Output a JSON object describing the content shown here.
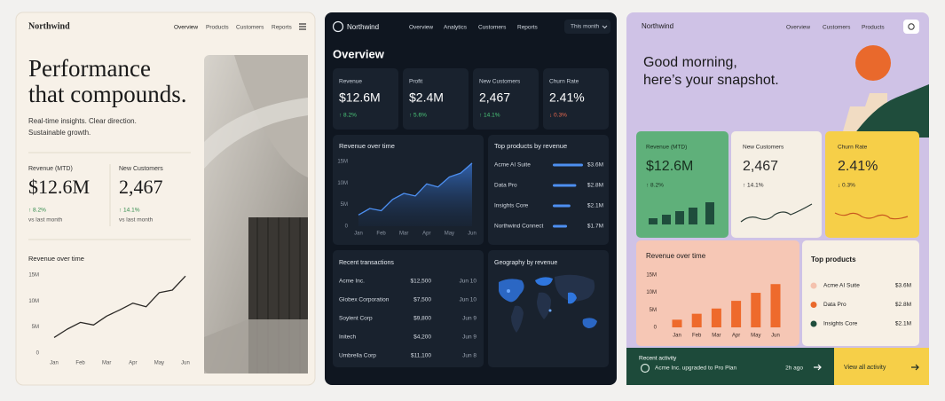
{
  "panels": [
    {
      "brand": "Northwind",
      "nav": [
        "Overview",
        "Products",
        "Customers",
        "Reports"
      ],
      "hero": [
        "Performance",
        "that compounds."
      ],
      "tagline": [
        "Real-time insights. Clear direction.",
        "Sustainable growth."
      ],
      "stats": [
        {
          "label": "Revenue (MTD)",
          "value": "$12.6M",
          "change": "↑ 8.2%",
          "note": "vs last month"
        },
        {
          "label": "New Customers",
          "value": "2,467",
          "change": "↑ 14.1%",
          "note": "vs last month"
        }
      ],
      "chart_data": {
        "type": "line",
        "title": "Revenue over time",
        "categories": [
          "Jan",
          null,
          "Feb",
          null,
          "Mar",
          null,
          "Apr",
          null,
          "May",
          null,
          "Jun"
        ],
        "values": [
          3.0,
          4.6,
          5.9,
          5.4,
          7.1,
          8.3,
          9.6,
          8.9,
          11.6,
          12.1,
          14.8
        ],
        "color": "#2b2926",
        "ylim": [
          0,
          15
        ],
        "yticks": [
          0,
          {
            "value": 5,
            "label": "5M"
          },
          {
            "value": 10,
            "label": "10M"
          },
          {
            "value": 15,
            "label": "15M"
          }
        ]
      }
    },
    {
      "brand": "Northwind",
      "nav": [
        "Overview",
        "Analytics",
        "Customers",
        "Reports"
      ],
      "period": "This month",
      "heading": "Overview",
      "kpis": [
        {
          "label": "Revenue",
          "value": "$12.6M",
          "change": "↑ 8.2%"
        },
        {
          "label": "Profit",
          "value": "$2.4M",
          "change": "↑ 5.6%"
        },
        {
          "label": "New Customers",
          "value": "2,467",
          "change": "↑ 14.1%"
        },
        {
          "label": "Churn Rate",
          "value": "2.41%",
          "change": "↓ 0.3%"
        }
      ],
      "chart_data": [
        {
          "type": "area",
          "title": "Revenue over time",
          "categories": [
            "Jan",
            null,
            "Feb",
            null,
            "Mar",
            null,
            "Apr",
            null,
            "May",
            null,
            "Jun"
          ],
          "values": [
            2.6,
            4.1,
            3.6,
            6.2,
            7.6,
            7.0,
            9.8,
            9.1,
            11.4,
            12.3,
            14.6
          ],
          "color": "#4d8ff0",
          "ylim": [
            0,
            15
          ],
          "yticks": [
            0,
            {
              "value": 5,
              "label": "5M"
            },
            {
              "value": 10,
              "label": "10M"
            },
            {
              "value": 15,
              "label": "15M"
            }
          ]
        },
        {
          "type": "hbar",
          "title": "Top products by revenue",
          "categories": [
            "Acme AI Suite",
            "Data Pro",
            "Insights Core",
            "Northwind Connect"
          ],
          "values": [
            3.6,
            2.8,
            2.1,
            1.7
          ],
          "value_labels": [
            "$3.6M",
            "$2.8M",
            "$2.1M",
            "$1.7M"
          ],
          "color": "#4d8ff0"
        }
      ],
      "transactions": {
        "title": "Recent transactions",
        "rows": [
          [
            "Acme Inc.",
            "$12,500",
            "Jun 10"
          ],
          [
            "Globex Corporation",
            "$7,500",
            "Jun 10"
          ],
          [
            "Soylent Corp",
            "$9,800",
            "Jun 9"
          ],
          [
            "Initech",
            "$4,200",
            "Jun 9"
          ],
          [
            "Umbrella Corp",
            "$11,100",
            "Jun 8"
          ]
        ]
      },
      "map_title": "Geography by revenue"
    },
    {
      "brand": "Northwind",
      "nav": [
        "Overview",
        "Customers",
        "Products"
      ],
      "greeting": [
        "Good morning,",
        "here’s your snapshot."
      ],
      "kpis": [
        {
          "label": "Revenue (MTD)",
          "value": "$12.6M",
          "change": "↑ 8.2%"
        },
        {
          "label": "New Customers",
          "value": "2,467",
          "change": "↑ 14.1%"
        },
        {
          "label": "Churn Rate",
          "value": "2.41%",
          "change": "↓ 0.3%"
        }
      ],
      "chart_data": {
        "type": "bar",
        "title": "Revenue over time",
        "categories": [
          "Jan",
          "Feb",
          "Mar",
          "Apr",
          "May",
          "Jun"
        ],
        "values": [
          2.2,
          3.9,
          5.4,
          7.6,
          9.9,
          12.4
        ],
        "color": "#ee6a2c",
        "ylim": [
          0,
          15
        ],
        "yticks": [
          0,
          {
            "value": 5,
            "label": "5M"
          },
          {
            "value": 10,
            "label": "10M"
          },
          {
            "value": 15,
            "label": "15M"
          }
        ]
      },
      "top_products": {
        "title": "Top products",
        "items": [
          {
            "name": "Acme AI Suite",
            "value": "$3.6M",
            "color": "#f4c2ae"
          },
          {
            "name": "Data Pro",
            "value": "$2.8M",
            "color": "#e9692c"
          },
          {
            "name": "Insights Core",
            "value": "$2.1M",
            "color": "#1f4d3c"
          }
        ]
      },
      "activity": {
        "title": "Recent activity",
        "text": "Acme Inc. upgraded to Pro Plan",
        "time": "2h ago"
      },
      "cta": "View all activity"
    }
  ]
}
